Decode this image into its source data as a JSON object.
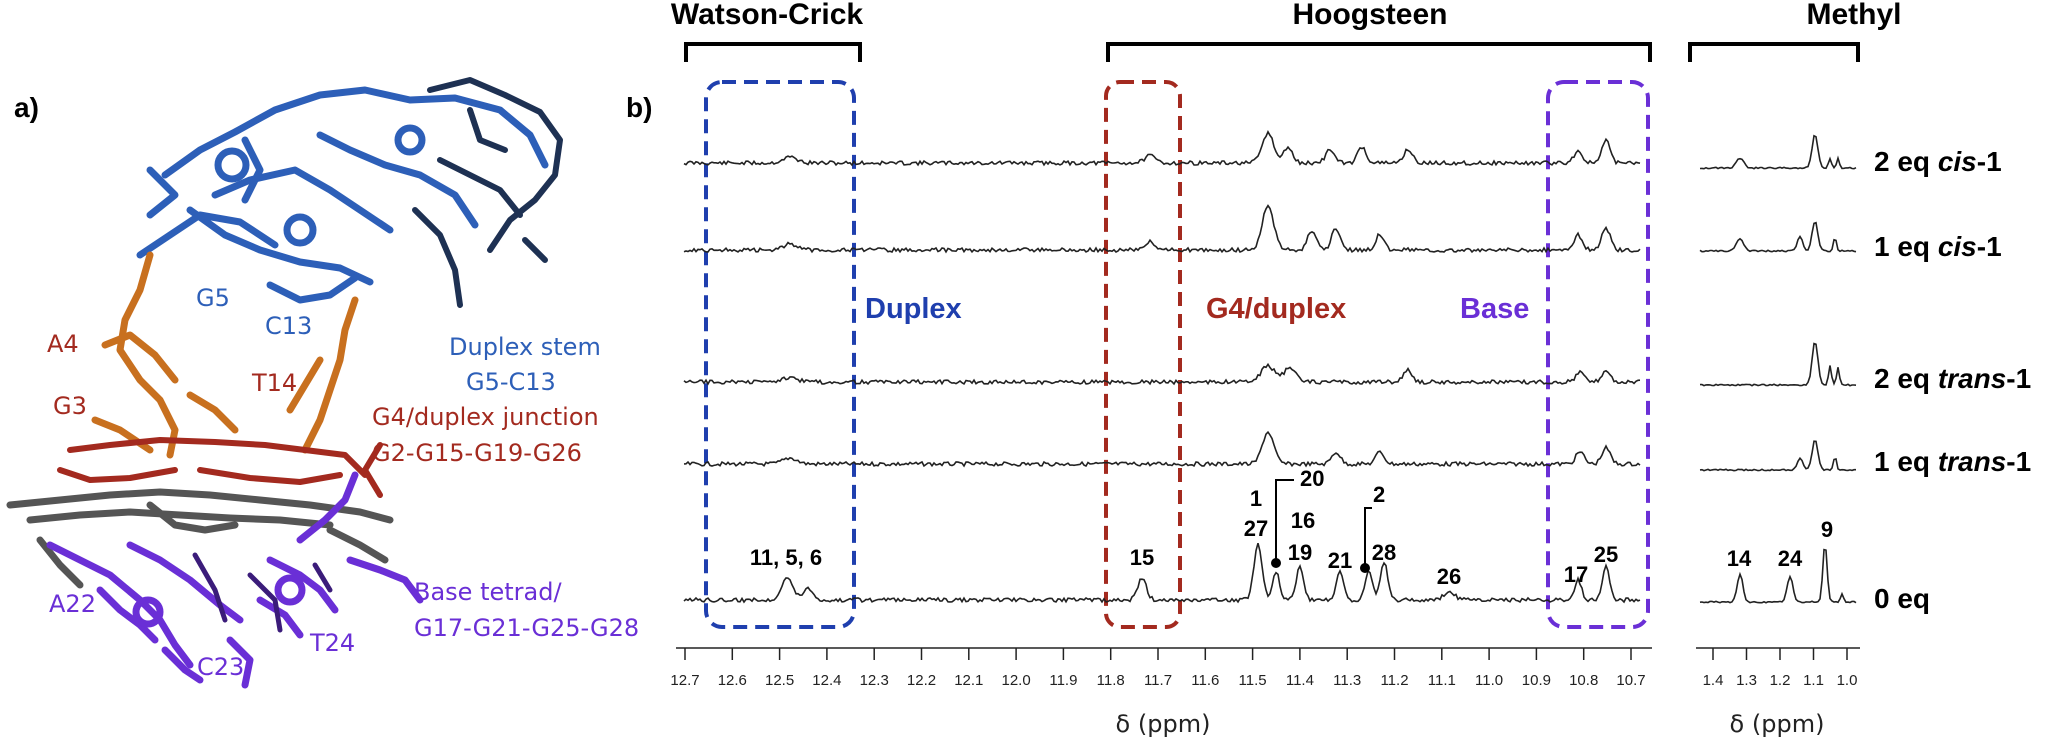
{
  "panel_a": {
    "label": "a)",
    "molecule_labels": {
      "g5": "G5",
      "c13": "C13",
      "a4": "A4",
      "t14": "T14",
      "g3": "G3",
      "duplex_stem": "Duplex stem",
      "duplex_range": "G5-C13",
      "junction": "G4/duplex junction",
      "junction_range": "G2-G15-G19-G26",
      "a22": "A22",
      "c23": "C23",
      "t24": "T24",
      "base_tetrad": "Base tetrad/",
      "tetrad_range": "G17-G21-G25-G28"
    },
    "colors": {
      "blue": "#2d5fb8",
      "dark_navy": "#1e3153",
      "red": "#a32a1f",
      "orange": "#c8701f",
      "gray": "#555555",
      "purple": "#6a2fd6"
    }
  },
  "panel_b": {
    "label": "b)",
    "headers": {
      "watson_crick": "Watson-Crick",
      "hoogsteen": "Hoogsteen",
      "methyl": "Methyl"
    },
    "region_labels": {
      "duplex": "Duplex",
      "g4_duplex": "G4/duplex",
      "base": "Base"
    },
    "region_colors": {
      "duplex": "#1f3fae",
      "g4_duplex": "#a32a1f",
      "base": "#6a2fd6"
    },
    "conditions": {
      "c1_pre": "2 eq ",
      "c1_it": "cis",
      "c1_post": "-1",
      "c2_pre": "1 eq ",
      "c2_it": "cis",
      "c2_post": "-1",
      "c3_pre": "2 eq ",
      "c3_it": "trans",
      "c3_post": "-1",
      "c4_pre": "1 eq ",
      "c4_it": "trans",
      "c4_post": "-1",
      "c5": "0 eq"
    },
    "peak_labels": {
      "p_11_5_6": "11, 5, 6",
      "p15": "15",
      "p1": "1",
      "p20": "20",
      "p27": "27",
      "p16": "16",
      "p19": "19",
      "p2": "2",
      "p21": "21",
      "p28": "28",
      "p26": "26",
      "p17": "17",
      "p25": "25",
      "m14": "14",
      "m24": "24",
      "m9": "9"
    },
    "axis_main": {
      "title": "δ (ppm)",
      "ticks": [
        "12.7",
        "12.6",
        "12.5",
        "12.4",
        "12.3",
        "12.2",
        "12.1",
        "12.0",
        "11.9",
        "11.8",
        "11.7",
        "11.6",
        "11.5",
        "11.4",
        "11.3",
        "11.2",
        "11.1",
        "11.0",
        "10.9",
        "10.8",
        "10.7"
      ]
    },
    "axis_methyl": {
      "title": "δ (ppm)",
      "ticks": [
        "1.4",
        "1.3",
        "1.2",
        "1.1",
        "1.0"
      ]
    }
  }
}
